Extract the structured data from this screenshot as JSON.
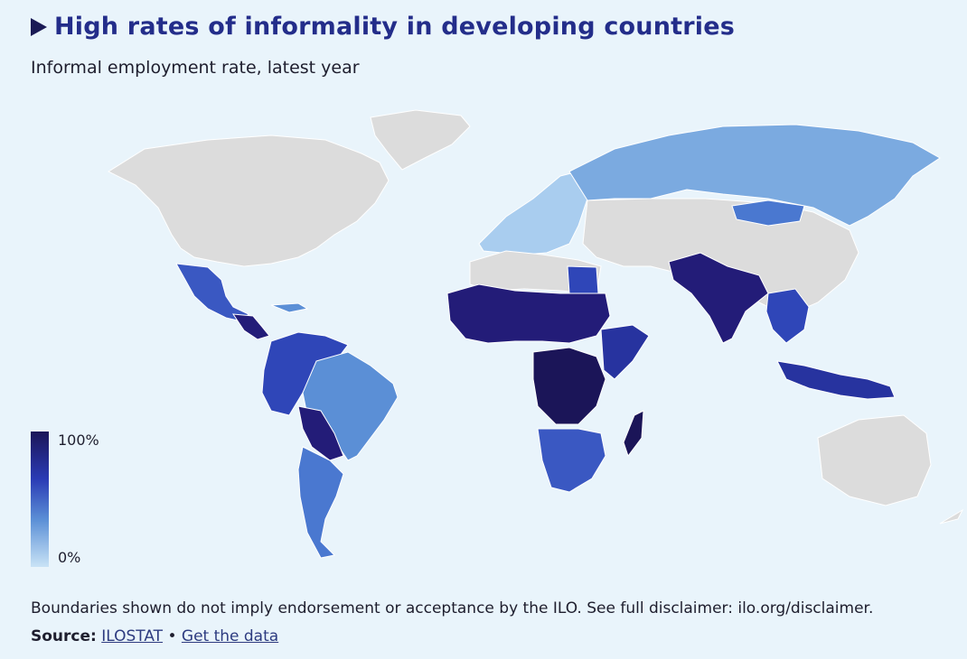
{
  "header": {
    "title": "High rates of informality in developing countries",
    "subtitle": "Informal employment rate, latest year"
  },
  "legend": {
    "max_label": "100%",
    "min_label": "0%",
    "colors": {
      "high": "#1b1558",
      "mid_high": "#2a3bb5",
      "mid": "#5b8fd6",
      "low": "#c9e3f6",
      "no_data": "#dcdcdc"
    }
  },
  "footer": {
    "disclaimer": "Boundaries shown do not imply endorsement or acceptance by the ILO. See full disclaimer: ilo.org/disclaimer.",
    "source_label": "Source:",
    "source_link": "ILOSTAT",
    "separator": "•",
    "data_link": "Get the data"
  }
}
